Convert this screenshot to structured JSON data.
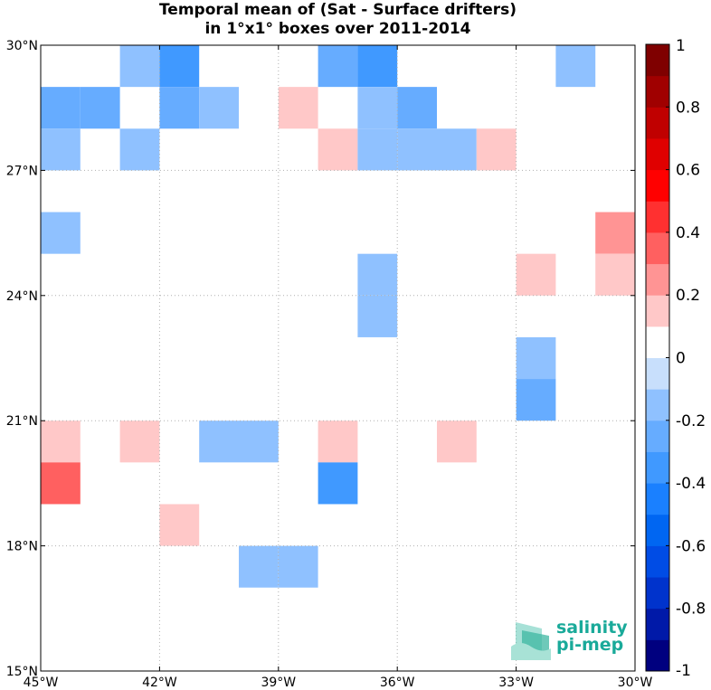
{
  "chart_data": {
    "type": "heatmap",
    "title": "Temporal mean of (Sat - Surface drifters)",
    "subtitle": "in 1°x1° boxes over 2011-2014",
    "xlabel": "",
    "ylabel": "",
    "xlim": [
      -45,
      -30
    ],
    "ylim": [
      15,
      30
    ],
    "grid": true,
    "x_ticks": [
      {
        "value": -45,
        "label": "45°W"
      },
      {
        "value": -42,
        "label": "42°W"
      },
      {
        "value": -39,
        "label": "39°W"
      },
      {
        "value": -36,
        "label": "36°W"
      },
      {
        "value": -33,
        "label": "33°W"
      },
      {
        "value": -30,
        "label": "30°W"
      }
    ],
    "y_ticks": [
      {
        "value": 15,
        "label": "15°N"
      },
      {
        "value": 18,
        "label": "18°N"
      },
      {
        "value": 21,
        "label": "21°N"
      },
      {
        "value": 24,
        "label": "24°N"
      },
      {
        "value": 27,
        "label": "27°N"
      },
      {
        "value": 30,
        "label": "30°N"
      }
    ],
    "colorbar": {
      "min": -1,
      "max": 1,
      "step": 0.1,
      "ticks": [
        {
          "value": 1,
          "label": "1"
        },
        {
          "value": 0.8,
          "label": "0.8"
        },
        {
          "value": 0.6,
          "label": "0.6"
        },
        {
          "value": 0.4,
          "label": "0.4"
        },
        {
          "value": 0.2,
          "label": "0.2"
        },
        {
          "value": 0,
          "label": "0"
        },
        {
          "value": -0.2,
          "label": "-0.2"
        },
        {
          "value": -0.4,
          "label": "-0.4"
        },
        {
          "value": -0.6,
          "label": "-0.6"
        },
        {
          "value": -0.8,
          "label": "-0.8"
        },
        {
          "value": -1,
          "label": "-1"
        }
      ],
      "colors_low_to_high": [
        "#00007f",
        "#0019a8",
        "#0033cc",
        "#004ce5",
        "#0066f2",
        "#1a80ff",
        "#4099ff",
        "#66acff",
        "#8fc1ff",
        "#c8dffc",
        "#ffffff",
        "#ffc8c8",
        "#ff9494",
        "#ff6060",
        "#ff3030",
        "#ff0000",
        "#e00000",
        "#c00000",
        "#a00000",
        "#7f0000"
      ]
    },
    "cells": [
      {
        "lon": -43,
        "lat": 29,
        "value": -0.15
      },
      {
        "lon": -42,
        "lat": 29,
        "value": -0.35
      },
      {
        "lon": -38,
        "lat": 29,
        "value": -0.25
      },
      {
        "lon": -37,
        "lat": 29,
        "value": -0.35
      },
      {
        "lon": -32,
        "lat": 29,
        "value": -0.15
      },
      {
        "lon": -45,
        "lat": 28,
        "value": -0.25
      },
      {
        "lon": -44,
        "lat": 28,
        "value": -0.25
      },
      {
        "lon": -42,
        "lat": 28,
        "value": -0.25
      },
      {
        "lon": -41,
        "lat": 28,
        "value": -0.15
      },
      {
        "lon": -39,
        "lat": 28,
        "value": 0.15
      },
      {
        "lon": -37,
        "lat": 28,
        "value": -0.15
      },
      {
        "lon": -36,
        "lat": 28,
        "value": -0.25
      },
      {
        "lon": -45,
        "lat": 27,
        "value": -0.15
      },
      {
        "lon": -43,
        "lat": 27,
        "value": -0.15
      },
      {
        "lon": -38,
        "lat": 27,
        "value": 0.15
      },
      {
        "lon": -37,
        "lat": 27,
        "value": -0.15
      },
      {
        "lon": -36,
        "lat": 27,
        "value": -0.15
      },
      {
        "lon": -35,
        "lat": 27,
        "value": -0.15
      },
      {
        "lon": -34,
        "lat": 27,
        "value": 0.15
      },
      {
        "lon": -45,
        "lat": 25,
        "value": -0.15
      },
      {
        "lon": -31,
        "lat": 25,
        "value": 0.25
      },
      {
        "lon": -37,
        "lat": 24,
        "value": -0.15
      },
      {
        "lon": -33,
        "lat": 24,
        "value": 0.15
      },
      {
        "lon": -31,
        "lat": 24,
        "value": 0.15
      },
      {
        "lon": -37,
        "lat": 23,
        "value": -0.15
      },
      {
        "lon": -33,
        "lat": 22,
        "value": -0.15
      },
      {
        "lon": -33,
        "lat": 21,
        "value": -0.25
      },
      {
        "lon": -45,
        "lat": 20,
        "value": 0.15
      },
      {
        "lon": -43,
        "lat": 20,
        "value": 0.15
      },
      {
        "lon": -41,
        "lat": 20,
        "value": -0.15
      },
      {
        "lon": -40,
        "lat": 20,
        "value": -0.15
      },
      {
        "lon": -38,
        "lat": 20,
        "value": 0.15
      },
      {
        "lon": -35,
        "lat": 20,
        "value": 0.15
      },
      {
        "lon": -45,
        "lat": 19,
        "value": 0.35
      },
      {
        "lon": -38,
        "lat": 19,
        "value": -0.35
      },
      {
        "lon": -42,
        "lat": 18,
        "value": 0.15
      },
      {
        "lon": -40,
        "lat": 17,
        "value": -0.15
      },
      {
        "lon": -39,
        "lat": 17,
        "value": -0.15
      }
    ]
  },
  "logo": {
    "line1": "salinity",
    "line2": "pi-mep",
    "name": "salinity-pimep-logo"
  }
}
